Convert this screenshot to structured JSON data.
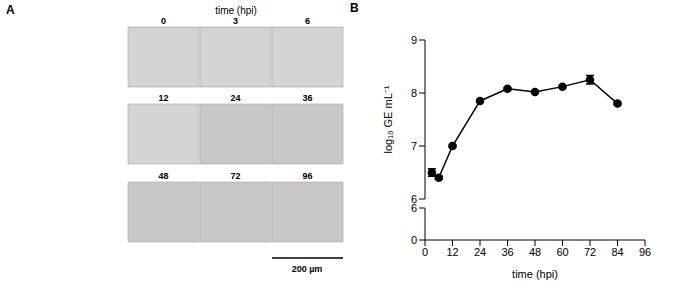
{
  "image_panel": {
    "label": "A",
    "title": "time (hpi)",
    "frames": [
      "0",
      "3",
      "6",
      "12",
      "24",
      "36",
      "48",
      "72",
      "96"
    ],
    "scale_bar": "200 µm"
  },
  "chart_data": [
    {
      "type": "line",
      "annotations": [
        "B"
      ],
      "ylabel": "log₁₀ GE mL⁻¹",
      "x": [
        3,
        6,
        12,
        24,
        36,
        48,
        60,
        72,
        84
      ],
      "values": [
        6.5,
        6.4,
        7.0,
        7.85,
        8.08,
        8.02,
        8.12,
        8.25,
        7.8
      ],
      "errors": [
        0.07,
        0.03,
        0.02,
        0.02,
        0.02,
        0.02,
        0.02,
        0.08,
        0.02
      ],
      "color": "#000000",
      "marker": "circle",
      "xlim": [
        0,
        96
      ],
      "ylim": [
        6,
        9
      ],
      "yticks": [
        6,
        7,
        8,
        9
      ],
      "tick_labels": "y"
    },
    {
      "type": "line",
      "xlabel": "time (hpi)",
      "xlim": [
        0,
        96
      ],
      "xticks": [
        0,
        12,
        24,
        36,
        48,
        60,
        72,
        84,
        96
      ],
      "ylim": [
        0,
        6
      ],
      "yticks": [
        0,
        6
      ]
    }
  ]
}
